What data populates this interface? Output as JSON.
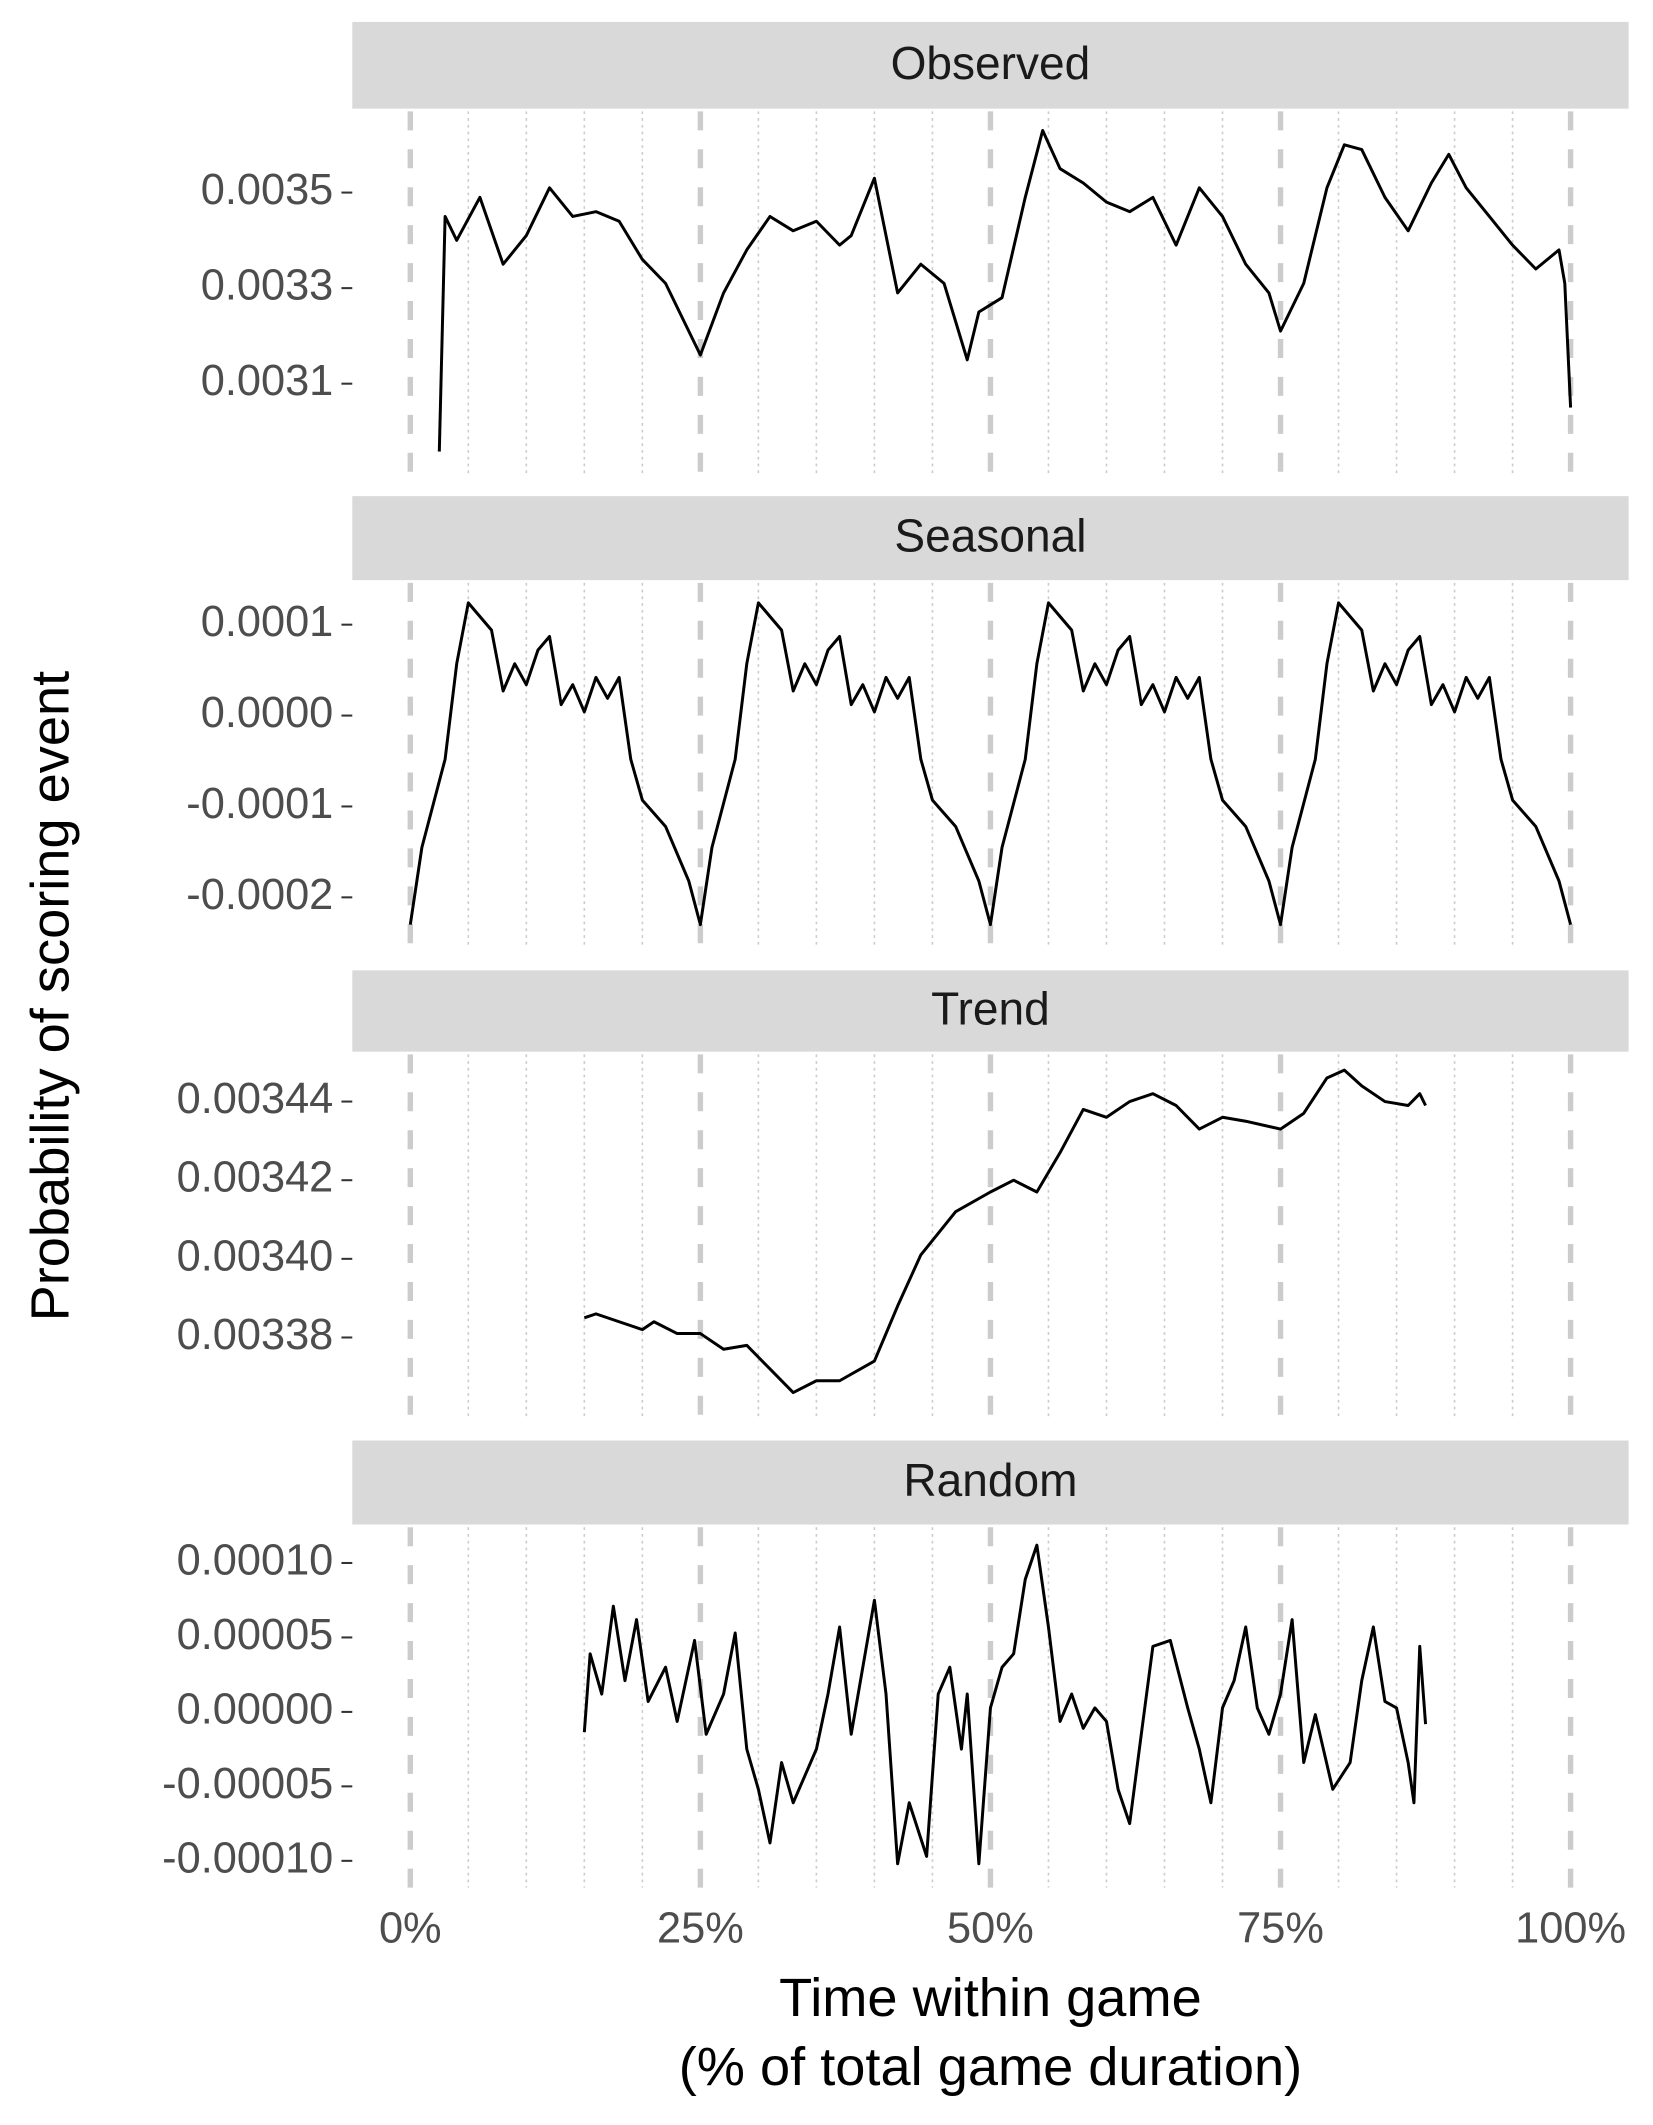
{
  "chart_data": {
    "type": "line",
    "xlabel": [
      "Time within game",
      "(% of total game duration)"
    ],
    "ylabel": "Probability of scoring event",
    "xlim": [
      -5,
      105
    ],
    "xticks": [
      {
        "value": 0,
        "label": "0%"
      },
      {
        "value": 25,
        "label": "25%"
      },
      {
        "value": 50,
        "label": "50%"
      },
      {
        "value": 75,
        "label": "75%"
      },
      {
        "value": 100,
        "label": "100%"
      }
    ],
    "x_minor_grid": [
      5,
      10,
      15,
      20,
      30,
      35,
      40,
      45,
      55,
      60,
      65,
      70,
      80,
      85,
      90,
      95
    ],
    "color": "#000000",
    "panels": [
      {
        "title": "Observed",
        "ylim": [
          0.00291,
          0.00367
        ],
        "yticks": [
          0.0031,
          0.0033,
          0.0035
        ],
        "x": [
          2.5,
          3,
          4,
          6,
          8,
          10,
          12,
          14,
          16,
          18,
          20,
          22,
          25,
          27,
          29,
          31,
          33,
          35,
          37,
          38,
          40,
          42,
          44,
          46,
          48,
          49,
          51,
          53,
          54.5,
          56,
          58,
          60,
          62,
          64,
          66,
          68,
          70,
          72,
          74,
          75,
          77,
          79,
          80.5,
          82,
          84,
          86,
          88,
          89.5,
          91,
          93,
          95,
          97,
          99,
          99.5,
          100
        ],
        "values": [
          0.002958,
          0.00345,
          0.0034,
          0.00349,
          0.00335,
          0.00341,
          0.00351,
          0.00345,
          0.00346,
          0.00344,
          0.00336,
          0.00331,
          0.00316,
          0.00329,
          0.00338,
          0.00345,
          0.00342,
          0.00344,
          0.00339,
          0.00341,
          0.00353,
          0.00329,
          0.00335,
          0.00331,
          0.00315,
          0.00325,
          0.00328,
          0.00349,
          0.00363,
          0.00355,
          0.00352,
          0.00348,
          0.00346,
          0.00349,
          0.00339,
          0.00351,
          0.00345,
          0.00335,
          0.00329,
          0.00321,
          0.00331,
          0.00351,
          0.0036,
          0.00359,
          0.00349,
          0.00342,
          0.00352,
          0.00358,
          0.00351,
          0.00345,
          0.00339,
          0.00334,
          0.00338,
          0.00331,
          0.00305
        ]
      },
      {
        "title": "Seasonal",
        "ylim": [
          -0.000252,
          0.000146
        ],
        "yticks": [
          -0.0002,
          -0.0001,
          {
            "value": 0,
            "label": "0.0000"
          },
          0.0001
        ],
        "x": [
          0,
          1,
          3,
          4,
          5,
          6,
          7,
          8,
          9,
          10,
          11,
          12,
          13,
          14,
          15,
          16,
          17,
          18,
          19,
          20,
          22,
          24,
          25,
          26,
          28,
          29,
          30,
          31,
          32,
          33,
          34,
          35,
          36,
          37,
          38,
          39,
          40,
          41,
          42,
          43,
          44,
          45,
          47,
          49,
          50,
          51,
          53,
          54,
          55,
          56,
          57,
          58,
          59,
          60,
          61,
          62,
          63,
          64,
          65,
          66,
          67,
          68,
          69,
          70,
          72,
          74,
          75,
          76,
          78,
          79,
          80,
          81,
          82,
          83,
          84,
          85,
          86,
          87,
          88,
          89,
          90,
          91,
          92,
          93,
          94,
          95,
          97,
          99,
          100
        ],
        "values": [
          -0.00023,
          -0.000145,
          -4.8e-05,
          5.7e-05,
          0.000124,
          0.000109,
          9.4e-05,
          2.7e-05,
          5.7e-05,
          3.4e-05,
          7.2e-05,
          8.7e-05,
          1.2e-05,
          3.4e-05,
          4e-06,
          4.2e-05,
          1.9e-05,
          4.2e-05,
          -4.8e-05,
          -9.3e-05,
          -0.000122,
          -0.000182,
          -0.00023,
          -0.000145,
          -4.8e-05,
          5.7e-05,
          0.000124,
          0.000109,
          9.4e-05,
          2.7e-05,
          5.7e-05,
          3.4e-05,
          7.2e-05,
          8.7e-05,
          1.2e-05,
          3.4e-05,
          4e-06,
          4.2e-05,
          1.9e-05,
          4.2e-05,
          -4.8e-05,
          -9.3e-05,
          -0.000122,
          -0.000182,
          -0.00023,
          -0.000145,
          -4.8e-05,
          5.7e-05,
          0.000124,
          0.000109,
          9.4e-05,
          2.7e-05,
          5.7e-05,
          3.4e-05,
          7.2e-05,
          8.7e-05,
          1.2e-05,
          3.4e-05,
          4e-06,
          4.2e-05,
          1.9e-05,
          4.2e-05,
          -4.8e-05,
          -9.3e-05,
          -0.000122,
          -0.000182,
          -0.00023,
          -0.000145,
          -4.8e-05,
          5.7e-05,
          0.000124,
          0.000109,
          9.4e-05,
          2.7e-05,
          5.7e-05,
          3.4e-05,
          7.2e-05,
          8.7e-05,
          1.2e-05,
          3.4e-05,
          4e-06,
          4.2e-05,
          1.9e-05,
          4.2e-05,
          -4.8e-05,
          -9.3e-05,
          -0.000122,
          -0.000182,
          -0.00023
        ]
      },
      {
        "title": "Trend",
        "ylim": [
          0.00336,
          0.003452
        ],
        "yticks": [
          0.00338,
          {
            "value": 0.0034,
            "label": "0.00340"
          },
          0.00342,
          0.00344
        ],
        "x": [
          15,
          16,
          18,
          20,
          21,
          23,
          25,
          27,
          29,
          31,
          33,
          35,
          37,
          40,
          42,
          44,
          47,
          50,
          52,
          54,
          56,
          58,
          60,
          62,
          64,
          66,
          68,
          70,
          72,
          75,
          77,
          79,
          80.5,
          82,
          84,
          86,
          87,
          87.5
        ],
        "values": [
          0.003385,
          0.003386,
          0.003384,
          0.003382,
          0.003384,
          0.003381,
          0.003381,
          0.003377,
          0.003378,
          0.003372,
          0.003366,
          0.003369,
          0.003369,
          0.003374,
          0.003388,
          0.003401,
          0.003412,
          0.003417,
          0.00342,
          0.003417,
          0.003427,
          0.003438,
          0.003436,
          0.00344,
          0.003442,
          0.003439,
          0.003433,
          0.003436,
          0.003435,
          0.003433,
          0.003437,
          0.003446,
          0.003448,
          0.003444,
          0.00344,
          0.003439,
          0.003442,
          0.003439
        ]
      },
      {
        "title": "Random",
        "ylim": [
          -0.000118,
          0.000124
        ],
        "yticks": [
          {
            "value": -0.0001,
            "label": "-0.00010"
          },
          {
            "value": -5e-05,
            "label": "-0.00005"
          },
          {
            "value": 0,
            "label": "0.00000"
          },
          {
            "value": 5e-05,
            "label": "0.00005"
          },
          {
            "value": 0.0001,
            "label": "0.00010"
          }
        ],
        "x": [
          15,
          15.5,
          16.5,
          17.5,
          18.5,
          19.5,
          20.5,
          22,
          23,
          24.5,
          25.5,
          27,
          28,
          29,
          30,
          31,
          32,
          33,
          35,
          36,
          37,
          38,
          39,
          40,
          41,
          42,
          43,
          44.5,
          45.5,
          46.5,
          47.5,
          48,
          49,
          50,
          51,
          52,
          53,
          54,
          55,
          56,
          57,
          58,
          59,
          60,
          61,
          62,
          63,
          64,
          65.5,
          67,
          68,
          69,
          70,
          71,
          72,
          73,
          74,
          75,
          76,
          77,
          78,
          79.5,
          81,
          82,
          83,
          84,
          85,
          86,
          86.5,
          87,
          87.5
        ],
        "values": [
          -1.36e-05,
          3.9e-05,
          1.2e-05,
          7.1e-05,
          2.1e-05,
          6.2e-05,
          7e-06,
          3e-05,
          -6.4e-06,
          4.8e-05,
          -1.5e-05,
          1.2e-05,
          5.3e-05,
          -2.5e-05,
          -5.2e-05,
          -8.8e-05,
          -3.4e-05,
          -6.1e-05,
          -2.5e-05,
          1.2e-05,
          5.7e-05,
          -1.5e-05,
          3e-05,
          7.5e-05,
          1.2e-05,
          -0.000102,
          -6.1e-05,
          -9.7e-05,
          1.2e-05,
          3e-05,
          -2.5e-05,
          1.2e-05,
          -0.000102,
          2.7e-06,
          3e-05,
          3.9e-05,
          8.9e-05,
          0.000112,
          5.7e-05,
          -6.4e-06,
          1.2e-05,
          -1.1e-05,
          2.7e-06,
          -6.4e-06,
          -5.2e-05,
          -7.5e-05,
          -1.5e-05,
          4.4e-05,
          4.8e-05,
          2.7e-06,
          -2.5e-05,
          -6.1e-05,
          2.7e-06,
          2.1e-05,
          5.7e-05,
          2.7e-06,
          -1.5e-05,
          1.2e-05,
          6.2e-05,
          -3.4e-05,
          -1.8e-06,
          -5.2e-05,
          -3.4e-05,
          2.1e-05,
          5.7e-05,
          7e-06,
          2.7e-06,
          -3.4e-05,
          -6.1e-05,
          4.4e-05,
          -8.2e-06
        ]
      }
    ]
  }
}
